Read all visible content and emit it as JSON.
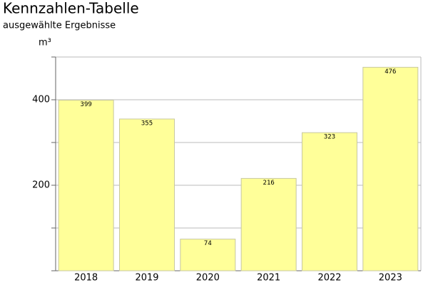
{
  "chart_data": {
    "type": "bar",
    "title": "Kennzahlen-Tabelle",
    "subtitle": "ausgewählte Ergebnisse",
    "y_label": "m³",
    "categories": [
      "2018",
      "2019",
      "2020",
      "2021",
      "2022",
      "2023"
    ],
    "values": [
      399,
      355,
      74,
      216,
      323,
      476
    ],
    "color": "#ffff99",
    "ylim": [
      0,
      500
    ],
    "yticks": [
      200,
      400
    ],
    "minor_yticks": [
      100,
      300,
      500
    ],
    "grid": true
  }
}
